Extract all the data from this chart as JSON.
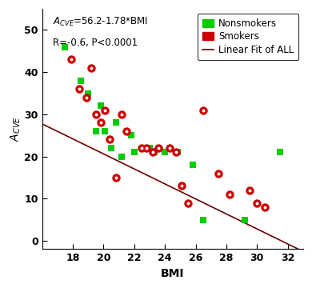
{
  "r_label": "R=-0.6, P<0.0001",
  "xlabel": "BMI",
  "ylabel_latex": "$A_{CVE}$",
  "xlim": [
    16,
    33
  ],
  "ylim": [
    -2,
    55
  ],
  "xticks": [
    18,
    20,
    22,
    24,
    26,
    28,
    30,
    32
  ],
  "yticks": [
    0,
    10,
    20,
    30,
    40,
    50
  ],
  "intercept": 56.2,
  "slope": -1.78,
  "nonsmokers_x": [
    17.5,
    18.5,
    19.0,
    19.5,
    19.8,
    20.1,
    20.5,
    20.8,
    21.2,
    21.8,
    22.0,
    23.0,
    23.3,
    24.0,
    24.8,
    25.8,
    26.5,
    29.2,
    31.5
  ],
  "nonsmokers_y": [
    46,
    38,
    35,
    26,
    32,
    26,
    22,
    28,
    20,
    25,
    21,
    22,
    21,
    21,
    21,
    18,
    5,
    5,
    21
  ],
  "smokers_x": [
    17.9,
    18.4,
    18.9,
    19.2,
    19.5,
    19.8,
    20.1,
    20.4,
    20.8,
    21.2,
    21.5,
    22.5,
    22.8,
    23.2,
    23.6,
    24.3,
    24.7,
    25.1,
    25.5,
    26.5,
    27.5,
    28.2,
    29.5,
    30.0,
    30.5
  ],
  "smokers_y": [
    43,
    36,
    34,
    41,
    30,
    28,
    31,
    24,
    15,
    30,
    26,
    22,
    22,
    21,
    22,
    22,
    21,
    13,
    9,
    31,
    16,
    11,
    12,
    9,
    8
  ],
  "nonsmoker_color": "#00cc00",
  "smoker_color": "#cc0000",
  "line_color": "#6B0000",
  "background_color": "#ffffff",
  "legend_nonsmokers": "Nonsmokers",
  "legend_smokers": "Smokers",
  "legend_line": "Linear Fit of ALL",
  "annot_text1": "A",
  "annot_text2": "CVE",
  "annot_eq": "=56.2-1.78*BMI"
}
